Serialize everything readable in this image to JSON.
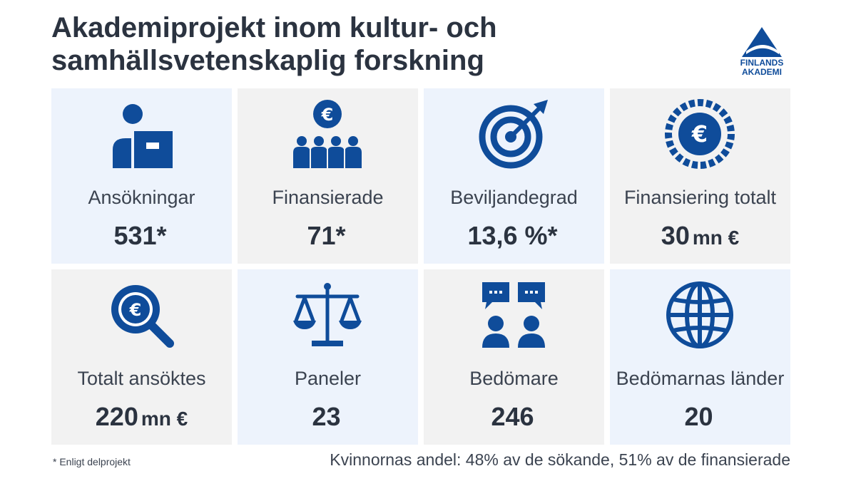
{
  "header": {
    "title_line1": "Akademiprojekt inom kultur- och",
    "title_line2": "samhällsvetenskaplig forskning"
  },
  "logo": {
    "line1": "FINLANDS",
    "line2": "AKADEMI"
  },
  "colors": {
    "icon": "#0f4c9a",
    "tile_light": "#edf3fc",
    "tile_grey": "#f2f2f2",
    "text": "#2b3340"
  },
  "tiles": [
    {
      "icon": "applicant-icon",
      "label": "Ansökningar",
      "value": "531*",
      "unit": ""
    },
    {
      "icon": "funded-group-icon",
      "label": "Finansierade",
      "value": "71*",
      "unit": ""
    },
    {
      "icon": "target-icon",
      "label": "Beviljandegrad",
      "value": "13,6 %*",
      "unit": ""
    },
    {
      "icon": "euro-coin-icon",
      "label": "Finansiering totalt",
      "value": "30",
      "unit": "mn €"
    },
    {
      "icon": "euro-magnifier-icon",
      "label": "Totalt ansöktes",
      "value": "220",
      "unit": "mn €"
    },
    {
      "icon": "scales-icon",
      "label": "Paneler",
      "value": "23",
      "unit": ""
    },
    {
      "icon": "reviewers-icon",
      "label": "Bedömare",
      "value": "246",
      "unit": ""
    },
    {
      "icon": "globe-icon",
      "label": "Bedömarnas länder",
      "value": "20",
      "unit": ""
    }
  ],
  "footer": {
    "footnote": "* Enligt delprojekt",
    "women_share": "Kvinnornas andel:  48% av de sökande, 51% av de finansierade"
  }
}
